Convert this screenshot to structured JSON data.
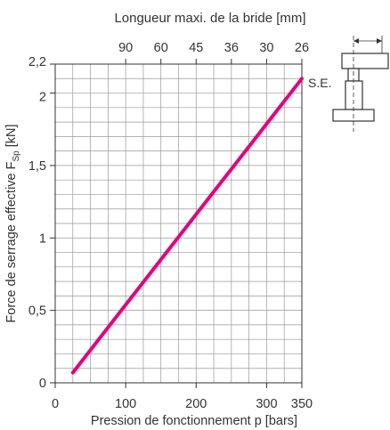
{
  "chart_data": {
    "type": "line",
    "top_axis_label": "Longueur maxi. de la bride [mm]",
    "top_axis_ticks": [
      {
        "p": 100,
        "label": "90"
      },
      {
        "p": 150,
        "label": "60"
      },
      {
        "p": 200,
        "label": "45"
      },
      {
        "p": 250,
        "label": "36"
      },
      {
        "p": 300,
        "label": "30"
      },
      {
        "p": 350,
        "label": "26"
      }
    ],
    "xlabel": "Pression de fonctionnement p [bars]",
    "xlim": [
      0,
      350
    ],
    "x_ticks": [
      {
        "value": 0,
        "label": "0"
      },
      {
        "value": 100,
        "label": "100"
      },
      {
        "value": 200,
        "label": "200"
      },
      {
        "value": 300,
        "label": "300"
      },
      {
        "value": 350,
        "label": "350"
      }
    ],
    "ylabel_main": "Force de serrage effective F",
    "ylabel_sub": "Sp",
    "ylabel_unit": " [kN]",
    "ylim": [
      0,
      2.2
    ],
    "y_ticks": [
      {
        "value": 0,
        "label": "0"
      },
      {
        "value": 0.5,
        "label": "0,5"
      },
      {
        "value": 1,
        "label": "1"
      },
      {
        "value": 1.5,
        "label": "1,5"
      },
      {
        "value": 2,
        "label": "2"
      },
      {
        "value": 2.2,
        "label": "2,2"
      }
    ],
    "grid": true,
    "line_label": "S.E.",
    "color": "#e6007e",
    "series": [
      {
        "x": [
          25,
          350
        ],
        "y": [
          0.07,
          2.1
        ]
      }
    ]
  }
}
